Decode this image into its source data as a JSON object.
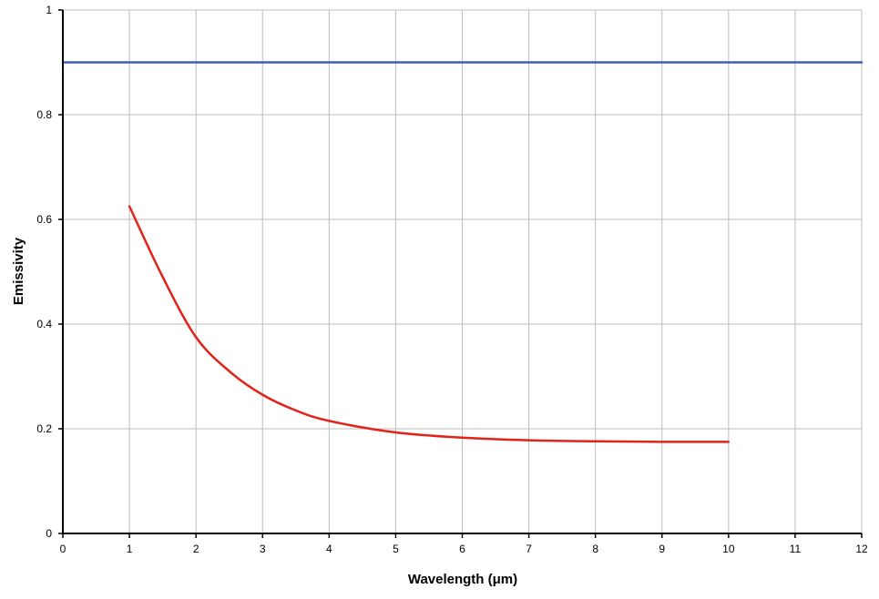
{
  "chart_data": {
    "type": "line",
    "title": "",
    "xlabel": "Wavelength (μm)",
    "ylabel": "Emissivity",
    "xlim": [
      0,
      12
    ],
    "ylim": [
      0,
      1
    ],
    "x_ticks": [
      0,
      1,
      2,
      3,
      4,
      5,
      6,
      7,
      8,
      9,
      10,
      11,
      12
    ],
    "y_ticks": [
      0,
      0.2,
      0.4,
      0.6,
      0.8,
      1
    ],
    "y_tick_labels": [
      "0",
      "0.2",
      "0.4",
      "0.6",
      "0.8",
      "1"
    ],
    "grid": true,
    "legend": "none",
    "series": [
      {
        "color": "#3f5eb8",
        "x": [
          0,
          12
        ],
        "y": [
          0.9,
          0.9
        ]
      },
      {
        "color": "#e2231a",
        "x": [
          1,
          1.5,
          2,
          2.5,
          3,
          3.5,
          4,
          5,
          6,
          7,
          8,
          9,
          10
        ],
        "y": [
          0.625,
          0.49,
          0.375,
          0.31,
          0.265,
          0.235,
          0.215,
          0.193,
          0.183,
          0.178,
          0.176,
          0.175,
          0.175
        ]
      }
    ]
  }
}
